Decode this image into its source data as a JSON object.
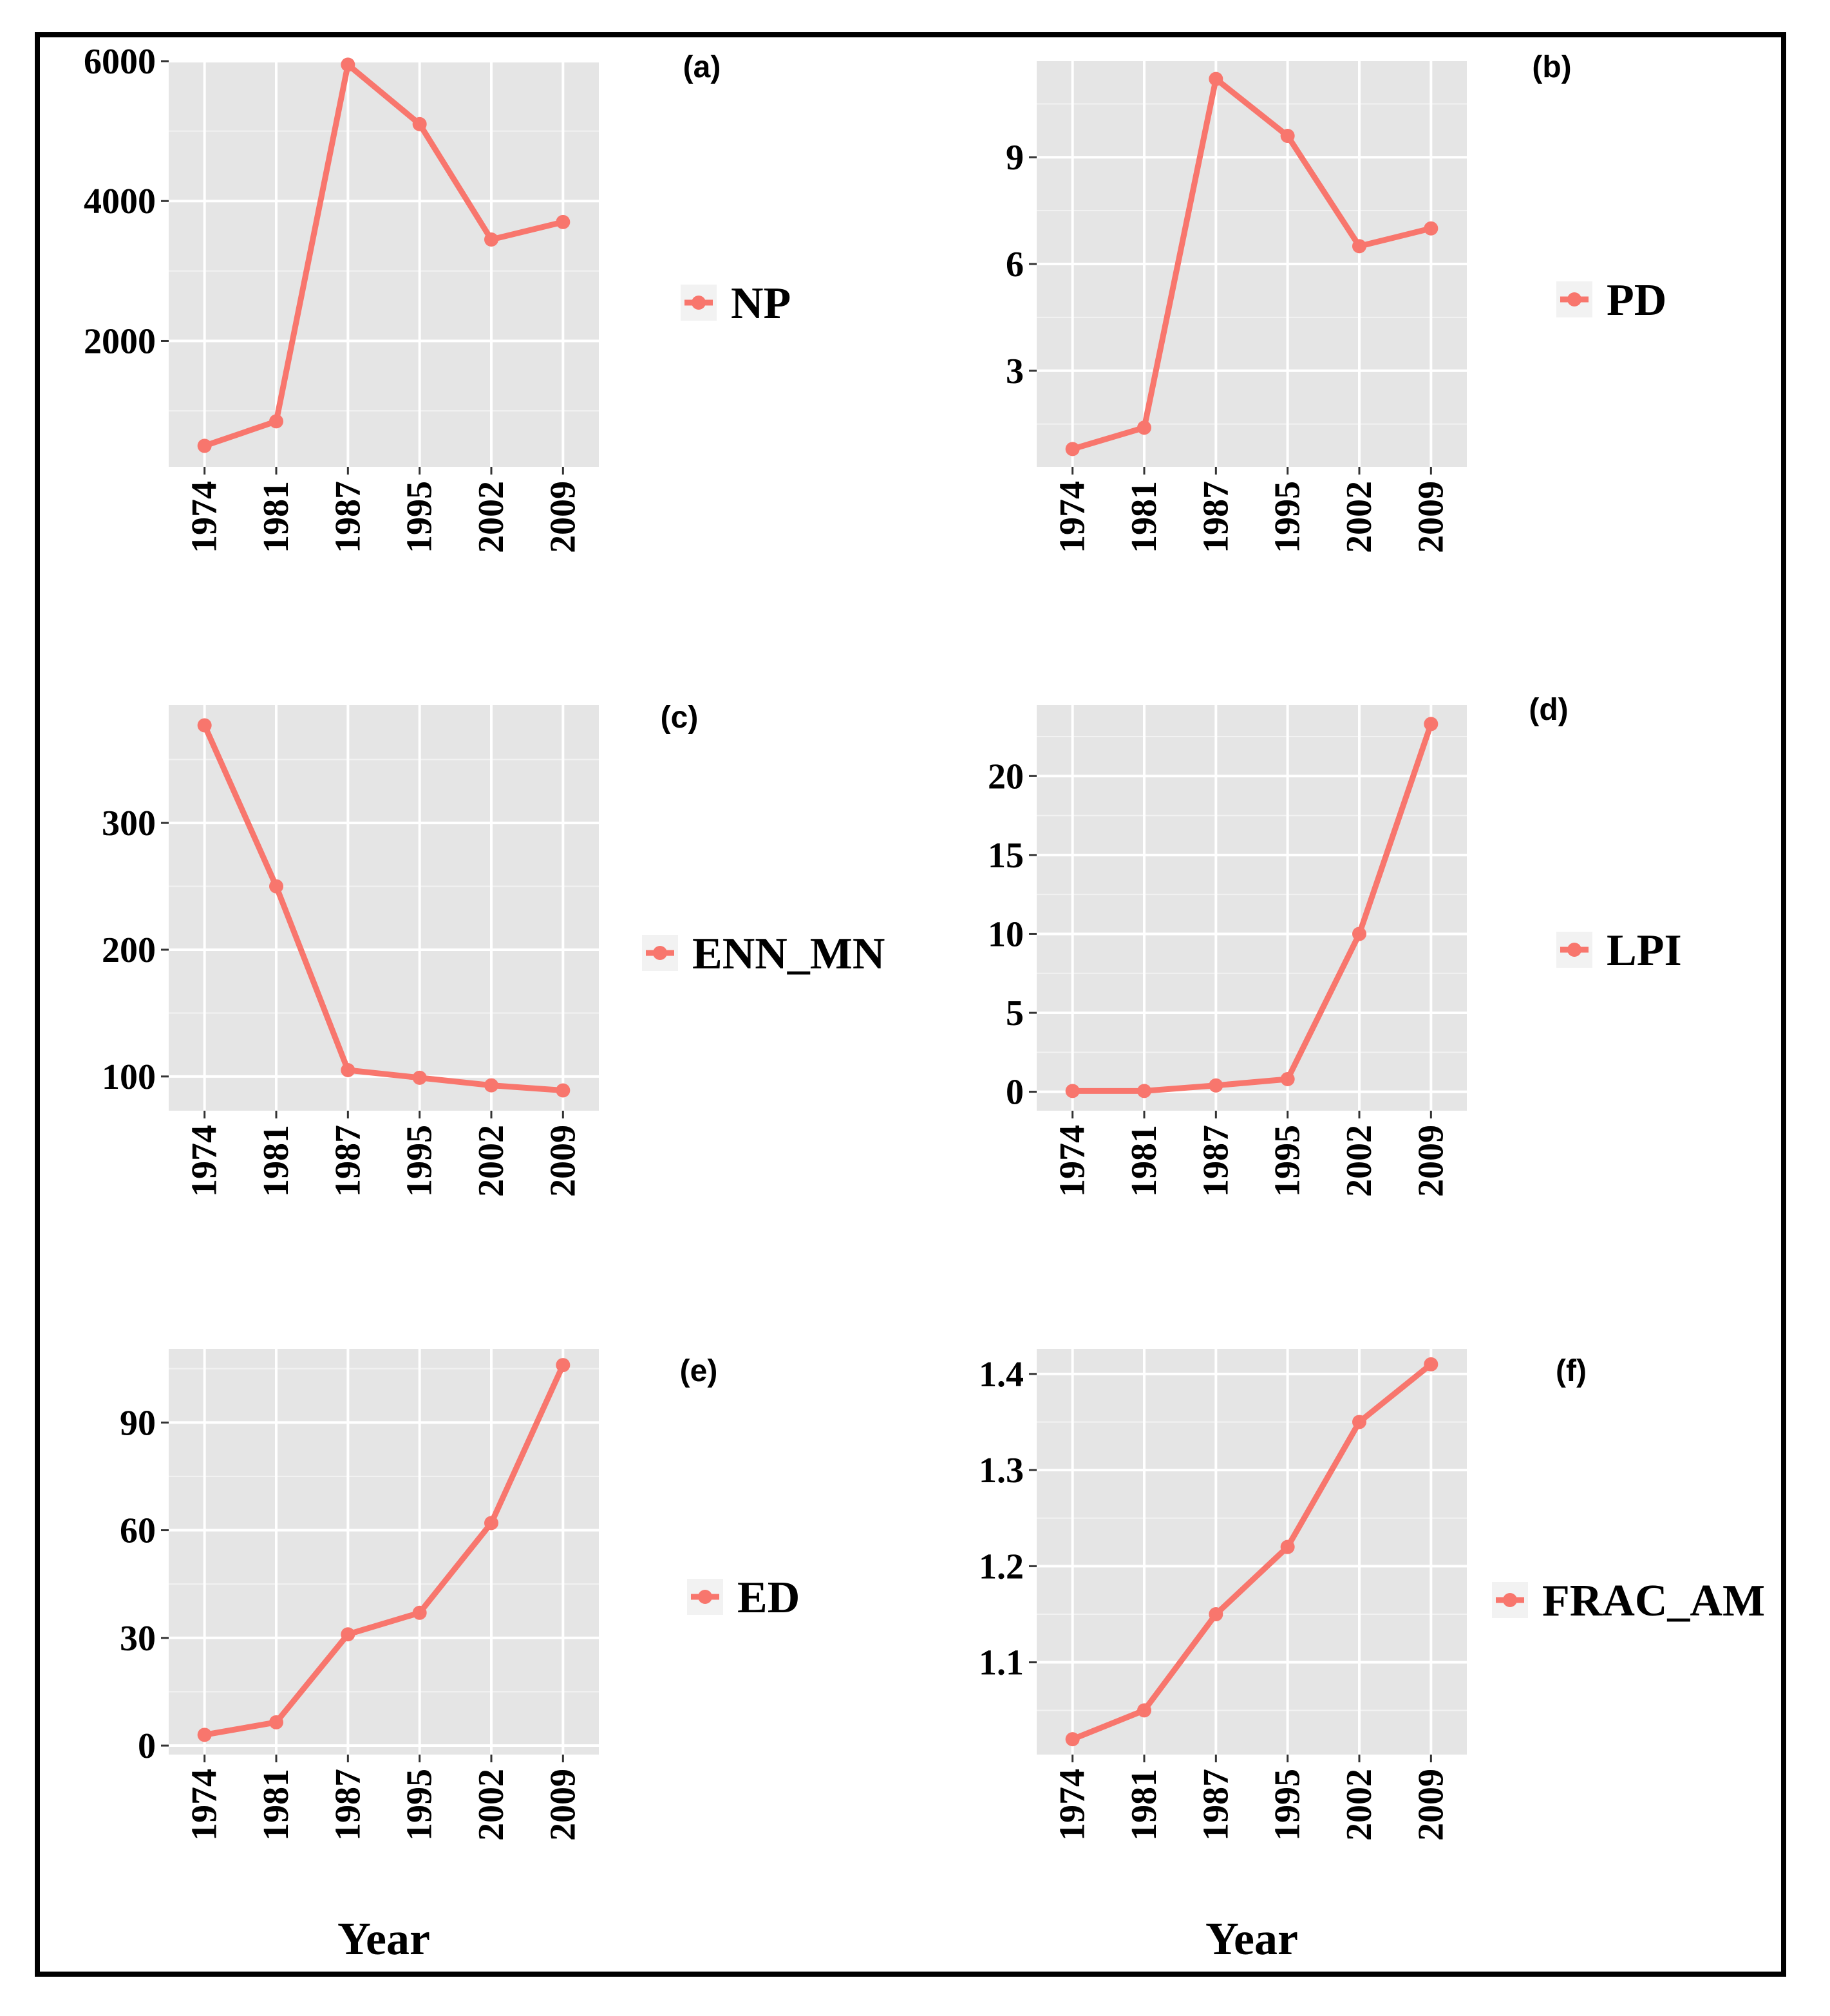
{
  "figure": {
    "x_axis_title": "Year",
    "line_color": "#F8766D",
    "panel_background": "#E5E5E5"
  },
  "chart_data": [
    {
      "type": "line",
      "panel_label": "(a)",
      "legend": "NP",
      "categories": [
        "1974",
        "1981",
        "1987",
        "1995",
        "2002",
        "2009"
      ],
      "values": [
        500,
        850,
        5950,
        5100,
        3450,
        3700
      ],
      "ylim": [
        200,
        6000
      ],
      "yticks": [
        2000,
        4000,
        6000
      ],
      "ytick_labels": [
        "2000",
        "4000",
        "6000"
      ],
      "show_xlabel": false
    },
    {
      "type": "line",
      "panel_label": "(b)",
      "legend": "PD",
      "categories": [
        "1974",
        "1981",
        "1987",
        "1995",
        "2002",
        "2009"
      ],
      "values": [
        0.8,
        1.4,
        11.2,
        9.6,
        6.5,
        7.0
      ],
      "ylim": [
        0.3,
        11.7
      ],
      "yticks": [
        3,
        6,
        9
      ],
      "ytick_labels": [
        "3",
        "6",
        "9"
      ],
      "show_xlabel": false
    },
    {
      "type": "line",
      "panel_label": "(c)",
      "legend": "ENN_MN",
      "categories": [
        "1974",
        "1981",
        "1987",
        "1995",
        "2002",
        "2009"
      ],
      "values": [
        377,
        250,
        105,
        99,
        93,
        89
      ],
      "ylim": [
        73,
        393
      ],
      "yticks": [
        100,
        200,
        300
      ],
      "ytick_labels": [
        "100",
        "200",
        "300"
      ],
      "show_xlabel": false
    },
    {
      "type": "line",
      "panel_label": "(d)",
      "legend": "LPI",
      "categories": [
        "1974",
        "1981",
        "1987",
        "1995",
        "2002",
        "2009"
      ],
      "values": [
        0.05,
        0.05,
        0.4,
        0.8,
        10,
        23.3
      ],
      "ylim": [
        -1.2,
        24.5
      ],
      "yticks": [
        0,
        5,
        10,
        15,
        20
      ],
      "ytick_labels": [
        "0",
        "5",
        "10",
        "15",
        "20"
      ],
      "show_xlabel": false
    },
    {
      "type": "line",
      "panel_label": "(e)",
      "legend": "ED",
      "categories": [
        "1974",
        "1981",
        "1987",
        "1995",
        "2002",
        "2009"
      ],
      "values": [
        3,
        6.5,
        31,
        37,
        62,
        106
      ],
      "ylim": [
        -2.5,
        110.5
      ],
      "yticks": [
        0,
        30,
        60,
        90
      ],
      "ytick_labels": [
        "0",
        "30",
        "60",
        "90"
      ],
      "show_xlabel": true
    },
    {
      "type": "line",
      "panel_label": "(f)",
      "legend": "FRAC_AM",
      "categories": [
        "1974",
        "1981",
        "1987",
        "1995",
        "2002",
        "2009"
      ],
      "values": [
        1.02,
        1.05,
        1.15,
        1.22,
        1.35,
        1.41
      ],
      "ylim": [
        1.004,
        1.426
      ],
      "yticks": [
        1.1,
        1.2,
        1.3,
        1.4
      ],
      "ytick_labels": [
        "1.1",
        "1.2",
        "1.3",
        "1.4"
      ],
      "show_xlabel": true
    }
  ]
}
